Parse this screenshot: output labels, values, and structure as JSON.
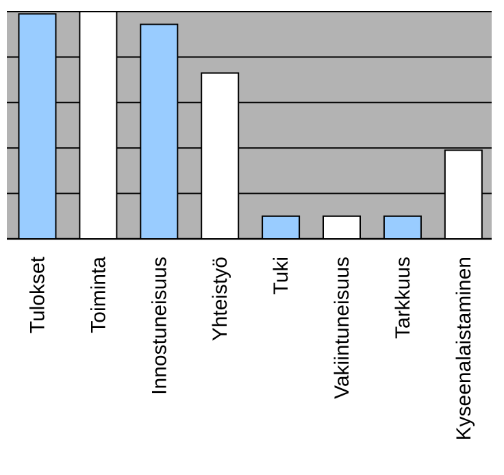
{
  "chart_data": {
    "type": "bar",
    "title": "",
    "xlabel": "",
    "ylabel": "",
    "categories": [
      "Tulokset",
      "Toiminta",
      "Innostuneisuus",
      "Yhteistyö",
      "Tuki",
      "Vakiintuneisuus",
      "Tarkkuus",
      "Kyseenalaistaminen"
    ],
    "values": [
      4.95,
      5.0,
      4.72,
      3.65,
      0.5,
      0.5,
      0.5,
      1.95
    ],
    "ylim": [
      0,
      5
    ],
    "grid": true,
    "legend": "none",
    "colors": {
      "plot_background": "#b3b3b3",
      "bar_blue": "#99ccff",
      "bar_white": "#ffffff",
      "outline": "#000000"
    },
    "bar_colors": [
      "#99ccff",
      "#ffffff",
      "#99ccff",
      "#ffffff",
      "#99ccff",
      "#ffffff",
      "#99ccff",
      "#ffffff"
    ]
  }
}
